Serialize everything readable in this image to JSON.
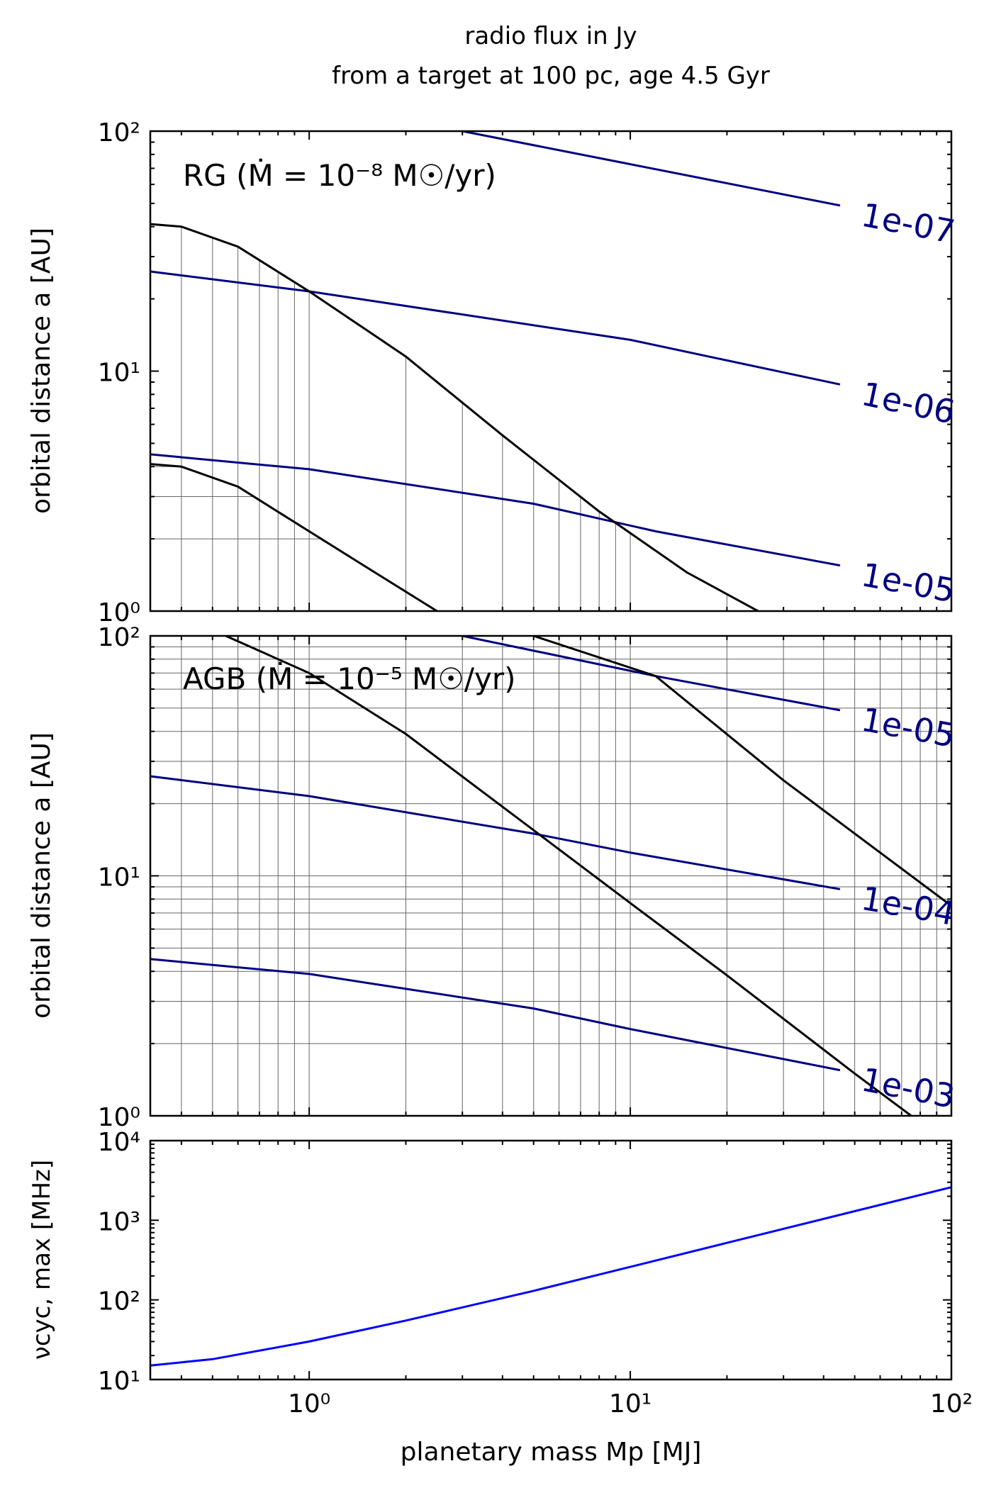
{
  "title_line1": "radio flux in Jy",
  "title_line2": "from a target at 100 pc, age 4.5 Gyr",
  "colors": {
    "flux_contour": "#000080",
    "cutoff_curve": "#000000",
    "frequency_curve": "#0000ff",
    "contour_label": "#000080"
  },
  "chart_data": [
    {
      "type": "line",
      "panel": "RG",
      "annotation": "RG (Ṁ = 10⁻⁸ M☉/yr)",
      "xlabel": "",
      "ylabel": "orbital distance a [AU]",
      "xscale": "log",
      "yscale": "log",
      "xlim": [
        0.32,
        100
      ],
      "ylim": [
        1,
        100
      ],
      "ytick_labels": [
        "10⁰",
        "10¹",
        "10²"
      ],
      "grid": "shaded region below left cutoff curve",
      "series": [
        {
          "label": "1e-07",
          "kind": "flux contour",
          "x": [
            0.32,
            3,
            45
          ],
          "y": [
            205,
            100,
            49
          ]
        },
        {
          "label": "1e-06",
          "kind": "flux contour",
          "x": [
            0.32,
            1,
            10,
            45
          ],
          "y": [
            26,
            21.5,
            13.5,
            8.8
          ]
        },
        {
          "label": "1e-05",
          "kind": "flux contour",
          "x": [
            0.32,
            1,
            5,
            12,
            45
          ],
          "y": [
            4.5,
            3.9,
            2.8,
            2.15,
            1.55
          ]
        },
        {
          "label": "",
          "kind": "cutoff",
          "x": [
            0.32,
            0.4,
            0.6,
            1,
            2,
            4,
            8,
            15,
            25
          ],
          "y": [
            41,
            40,
            33,
            21.5,
            11.5,
            5.4,
            2.6,
            1.45,
            1
          ]
        },
        {
          "label": "",
          "kind": "cutoff",
          "x": [
            0.32,
            0.4,
            0.6,
            1,
            1.6,
            2.5
          ],
          "y": [
            4.1,
            4,
            3.3,
            2.15,
            1.45,
            1
          ]
        }
      ]
    },
    {
      "type": "line",
      "panel": "AGB",
      "annotation": "AGB (Ṁ = 10⁻⁵ M☉/yr)",
      "xlabel": "",
      "ylabel": "orbital distance a [AU]",
      "xscale": "log",
      "yscale": "log",
      "xlim": [
        0.32,
        100
      ],
      "ylim": [
        1,
        100
      ],
      "ytick_labels": [
        "10⁰",
        "10¹",
        "10²"
      ],
      "grid": "full background grid",
      "series": [
        {
          "label": "1e-05",
          "kind": "flux contour",
          "x": [
            3,
            12,
            45
          ],
          "y": [
            100,
            68,
            49
          ]
        },
        {
          "label": "1e-04",
          "kind": "flux contour",
          "x": [
            0.32,
            1,
            5,
            10,
            45
          ],
          "y": [
            26,
            21.5,
            15,
            12.5,
            8.8
          ]
        },
        {
          "label": "1e-03",
          "kind": "flux contour",
          "x": [
            0.32,
            1,
            5,
            10,
            45
          ],
          "y": [
            4.5,
            3.9,
            2.8,
            2.3,
            1.55
          ]
        },
        {
          "label": "",
          "kind": "cutoff",
          "x": [
            0.55,
            1,
            2,
            5,
            10,
            20,
            50,
            75
          ],
          "y": [
            100,
            70,
            39,
            15.5,
            7.7,
            3.85,
            1.5,
            1
          ]
        },
        {
          "label": "",
          "kind": "cutoff",
          "x": [
            5,
            12,
            30,
            60,
            100
          ],
          "y": [
            100,
            68,
            25,
            12.5,
            7.5
          ]
        }
      ]
    },
    {
      "type": "line",
      "panel": "frequency",
      "xlabel": "planetary mass Mp [MJ]",
      "ylabel": "νcyc, max [MHz]",
      "xscale": "log",
      "yscale": "log",
      "xlim": [
        0.32,
        100
      ],
      "ylim": [
        10,
        10000
      ],
      "xtick_labels": [
        "10⁰",
        "10¹",
        "10²"
      ],
      "ytick_labels": [
        "10¹",
        "10²",
        "10³",
        "10⁴"
      ],
      "grid": "off",
      "series": [
        {
          "label": "",
          "kind": "maximum cyclotron frequency",
          "x": [
            0.32,
            0.5,
            1,
            2,
            5,
            10,
            20,
            50,
            100
          ],
          "y": [
            15,
            18,
            30,
            55,
            130,
            260,
            520,
            1300,
            2600
          ]
        }
      ]
    }
  ]
}
